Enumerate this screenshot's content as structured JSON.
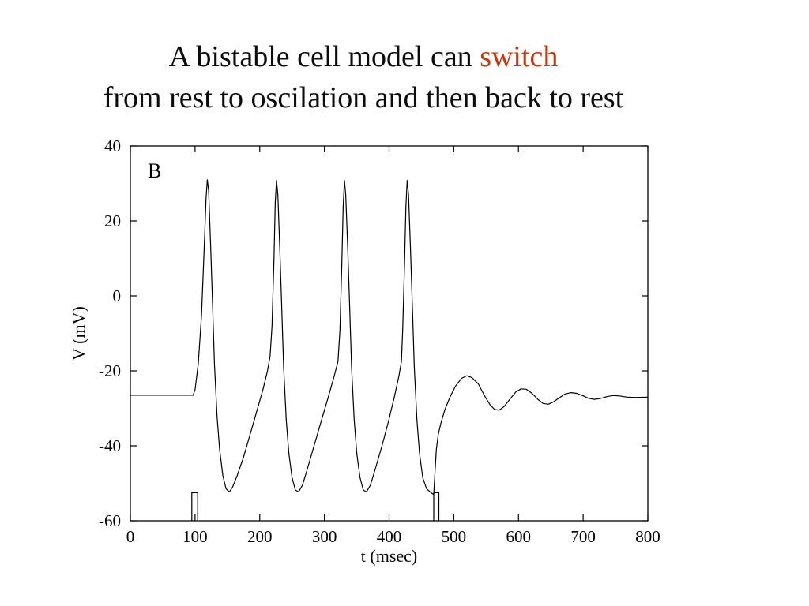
{
  "slide": {
    "title_black": "A bistable cell model can ",
    "title_accent": "switch",
    "title_line2": "from rest to oscilation and then back to rest",
    "accent_color": "#c23a14",
    "text_color": "#0c0c0c",
    "background_color": "#ffffff"
  },
  "chart_data": {
    "type": "line",
    "panel_label": "B",
    "title": "",
    "xlabel": "t (msec)",
    "ylabel": "V (mV)",
    "xlim": [
      0,
      800
    ],
    "ylim": [
      -60,
      40
    ],
    "x_ticks": [
      0,
      100,
      200,
      300,
      400,
      500,
      600,
      700,
      800
    ],
    "y_ticks": [
      40,
      20,
      0,
      -20,
      -40,
      -60
    ],
    "grid": false,
    "legend": "none",
    "line_color": "#000000",
    "series": [
      {
        "name": "membrane-voltage",
        "points": [
          [
            0,
            -26.5
          ],
          [
            50,
            -26.5
          ],
          [
            97,
            -26.5
          ],
          [
            100,
            -25
          ],
          [
            105,
            -18
          ],
          [
            110,
            -5
          ],
          [
            114,
            12
          ],
          [
            117,
            26
          ],
          [
            119,
            31
          ],
          [
            121,
            28
          ],
          [
            124,
            14
          ],
          [
            127,
            -2
          ],
          [
            130,
            -18
          ],
          [
            134,
            -32
          ],
          [
            138,
            -41
          ],
          [
            143,
            -48
          ],
          [
            148,
            -51.5
          ],
          [
            153,
            -52.3
          ],
          [
            158,
            -51
          ],
          [
            165,
            -48
          ],
          [
            175,
            -43
          ],
          [
            185,
            -37
          ],
          [
            195,
            -31
          ],
          [
            205,
            -25
          ],
          [
            212,
            -20
          ],
          [
            216,
            -16
          ],
          [
            219,
            -8
          ],
          [
            222,
            10
          ],
          [
            224,
            25
          ],
          [
            226,
            30.8
          ],
          [
            228,
            27
          ],
          [
            231,
            13
          ],
          [
            234,
            -3
          ],
          [
            237,
            -19
          ],
          [
            241,
            -33
          ],
          [
            245,
            -42
          ],
          [
            250,
            -48.5
          ],
          [
            255,
            -51.8
          ],
          [
            260,
            -52.3
          ],
          [
            266,
            -50.5
          ],
          [
            274,
            -46
          ],
          [
            284,
            -40
          ],
          [
            295,
            -33.5
          ],
          [
            306,
            -27
          ],
          [
            315,
            -21.5
          ],
          [
            321,
            -17.5
          ],
          [
            324,
            -9
          ],
          [
            327,
            9
          ],
          [
            329,
            24
          ],
          [
            331,
            30.8
          ],
          [
            333,
            27
          ],
          [
            336,
            13
          ],
          [
            339,
            -3
          ],
          [
            342,
            -19
          ],
          [
            346,
            -33
          ],
          [
            350,
            -42
          ],
          [
            355,
            -48.5
          ],
          [
            360,
            -51.8
          ],
          [
            365,
            -52.3
          ],
          [
            371,
            -50.5
          ],
          [
            379,
            -46
          ],
          [
            389,
            -40
          ],
          [
            399,
            -33.5
          ],
          [
            408,
            -27
          ],
          [
            415,
            -21.5
          ],
          [
            419,
            -17.5
          ],
          [
            421,
            -9
          ],
          [
            424,
            9
          ],
          [
            426,
            24
          ],
          [
            428,
            30.8
          ],
          [
            430,
            27
          ],
          [
            433,
            13
          ],
          [
            436,
            -3
          ],
          [
            439,
            -19
          ],
          [
            443,
            -33
          ],
          [
            447,
            -42
          ],
          [
            452,
            -48.5
          ],
          [
            458,
            -51.5
          ],
          [
            465,
            -52.5
          ],
          [
            469,
            -53
          ],
          [
            471,
            -47
          ],
          [
            473,
            -41
          ],
          [
            476,
            -37
          ],
          [
            480,
            -34
          ],
          [
            486,
            -30.5
          ],
          [
            494,
            -27
          ],
          [
            503,
            -24
          ],
          [
            512,
            -22
          ],
          [
            520,
            -21.3
          ],
          [
            528,
            -21.8
          ],
          [
            538,
            -23.5
          ],
          [
            547,
            -26.5
          ],
          [
            556,
            -29
          ],
          [
            563,
            -30.3
          ],
          [
            570,
            -30.5
          ],
          [
            578,
            -29.5
          ],
          [
            587,
            -27.5
          ],
          [
            596,
            -25.6
          ],
          [
            604,
            -24.8
          ],
          [
            612,
            -24.9
          ],
          [
            621,
            -26
          ],
          [
            630,
            -27.6
          ],
          [
            638,
            -28.7
          ],
          [
            646,
            -28.9
          ],
          [
            654,
            -28.3
          ],
          [
            663,
            -27.2
          ],
          [
            672,
            -26.2
          ],
          [
            681,
            -25.8
          ],
          [
            690,
            -26
          ],
          [
            699,
            -26.6
          ],
          [
            708,
            -27.3
          ],
          [
            717,
            -27.6
          ],
          [
            726,
            -27.4
          ],
          [
            736,
            -26.9
          ],
          [
            746,
            -26.6
          ],
          [
            756,
            -26.7
          ],
          [
            768,
            -27
          ],
          [
            780,
            -27.1
          ],
          [
            800,
            -27
          ]
        ]
      },
      {
        "name": "stimulus-pulse-1",
        "points": [
          [
            95,
            -60
          ],
          [
            95,
            -52.5
          ],
          [
            104,
            -52.5
          ],
          [
            104,
            -60
          ]
        ]
      },
      {
        "name": "stimulus-pulse-2",
        "points": [
          [
            469,
            -60
          ],
          [
            469,
            -52.5
          ],
          [
            477,
            -52.5
          ],
          [
            477,
            -60
          ]
        ]
      }
    ]
  }
}
